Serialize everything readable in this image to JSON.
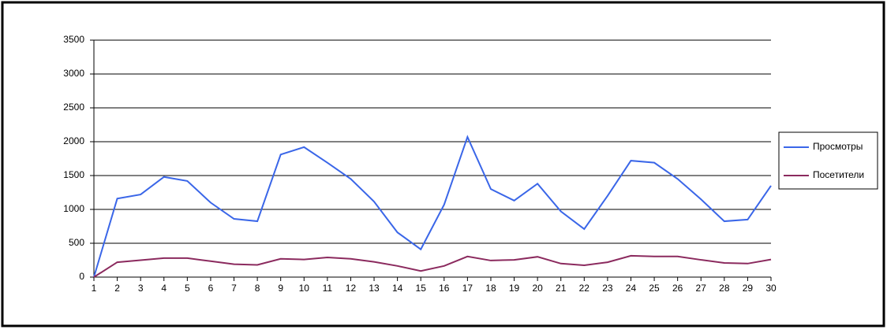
{
  "chart_data": {
    "type": "line",
    "x": [
      1,
      2,
      3,
      4,
      5,
      6,
      7,
      8,
      9,
      10,
      11,
      12,
      13,
      14,
      15,
      16,
      17,
      18,
      19,
      20,
      21,
      22,
      23,
      24,
      25,
      26,
      27,
      28,
      29,
      30
    ],
    "series": [
      {
        "name": "Просмотры",
        "color": "#3a66e8",
        "values": [
          0,
          1160,
          1220,
          1480,
          1420,
          1100,
          860,
          825,
          1810,
          1920,
          1690,
          1450,
          1115,
          660,
          410,
          1070,
          2070,
          1300,
          1130,
          1380,
          970,
          710,
          1200,
          1720,
          1690,
          1450,
          1150,
          825,
          850,
          1350
        ]
      },
      {
        "name": "Посетители",
        "color": "#8b2a5e",
        "values": [
          0,
          220,
          250,
          280,
          280,
          235,
          190,
          180,
          270,
          260,
          290,
          270,
          225,
          165,
          90,
          165,
          305,
          245,
          255,
          300,
          200,
          175,
          220,
          315,
          305,
          305,
          255,
          210,
          200,
          260
        ]
      }
    ],
    "xlim": [
      1,
      30
    ],
    "xticks": [
      1,
      2,
      3,
      4,
      5,
      6,
      7,
      8,
      9,
      10,
      11,
      12,
      13,
      14,
      15,
      16,
      17,
      18,
      19,
      20,
      21,
      22,
      23,
      24,
      25,
      26,
      27,
      28,
      29,
      30
    ],
    "ylim": [
      0,
      3500
    ],
    "yticks": [
      0,
      500,
      1000,
      1500,
      2000,
      2500,
      3000,
      3500
    ],
    "grid": true,
    "legend": "right"
  }
}
